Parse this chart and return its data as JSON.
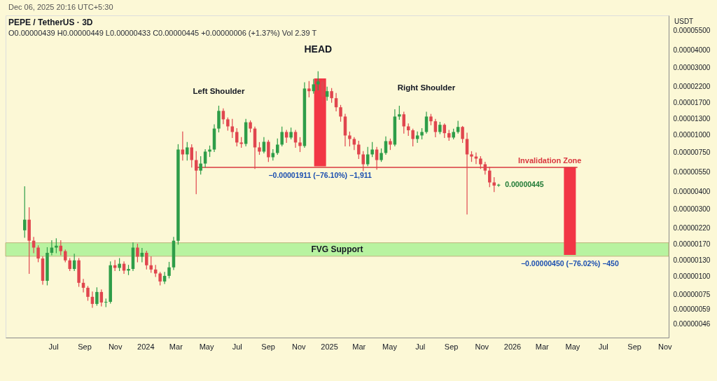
{
  "chart_data": {
    "type": "candlestick",
    "title": "PEPE / TetherUS · 3D",
    "subtitle": "O0.00000439 H0.00000449 L0.00000433 C0.00000445 +0.00000006 (+1.37%)  Vol 2.39 T",
    "ylabel": "USDT",
    "log": true,
    "xlim": [
      "2023-03-28",
      "2026-11-09"
    ],
    "ylim": [
      3.7e-07,
      7e-05
    ],
    "xticks": [
      {
        "value": "2023-07",
        "label": "Jul"
      },
      {
        "value": "2023-09",
        "label": "Sep"
      },
      {
        "value": "2023-11",
        "label": "Nov"
      },
      "2024",
      {
        "value": "2024-03",
        "label": "Mar"
      },
      {
        "value": "2024-05",
        "label": "May"
      },
      {
        "value": "2024-07",
        "label": "Jul"
      },
      {
        "value": "2024-09",
        "label": "Sep"
      },
      {
        "value": "2024-11",
        "label": "Nov"
      },
      "2025",
      {
        "value": "2025-03",
        "label": "Mar"
      },
      {
        "value": "2025-05",
        "label": "May"
      },
      {
        "value": "2025-07",
        "label": "Jul"
      },
      {
        "value": "2025-09",
        "label": "Sep"
      },
      {
        "value": "2025-11",
        "label": "Nov"
      },
      "2026",
      {
        "value": "2026-03",
        "label": "Mar"
      },
      {
        "value": "2026-05",
        "label": "May"
      },
      {
        "value": "2026-07",
        "label": "Jul"
      },
      {
        "value": "2026-09",
        "label": "Sep"
      },
      {
        "value": "2026-11",
        "label": "Nov"
      }
    ],
    "yticks": [
      {
        "value": 5.5e-05,
        "label": "0.00005500"
      },
      {
        "value": 4e-05,
        "label": "0.00004000"
      },
      {
        "value": 3e-05,
        "label": "0.00003000"
      },
      {
        "value": 2.2e-05,
        "label": "0.00002200"
      },
      {
        "value": 1.7e-05,
        "label": "0.00001700"
      },
      {
        "value": 1.3e-05,
        "label": "0.00001300"
      },
      {
        "value": 1e-05,
        "label": "0.00001000"
      },
      {
        "value": 7.5e-06,
        "label": "0.00000750"
      },
      {
        "value": 5.5e-06,
        "label": "0.00000550"
      },
      {
        "value": 4e-06,
        "label": "0.00000400"
      },
      {
        "value": 3e-06,
        "label": "0.00000300"
      },
      {
        "value": 2.2e-06,
        "label": "0.00000220"
      },
      {
        "value": 1.7e-06,
        "label": "0.00000170"
      },
      {
        "value": 1.3e-06,
        "label": "0.00000130"
      },
      {
        "value": 1e-06,
        "label": "0.00000100"
      },
      {
        "value": 7.5e-07,
        "label": "0.00000075"
      },
      {
        "value": 5.9e-07,
        "label": "0.00000059"
      },
      {
        "value": 4.6e-07,
        "label": "0.00000046"
      }
    ],
    "bands": [
      {
        "axis": "y",
        "from": 1.39e-06,
        "to": 1.73e-06,
        "label": "FVG Support",
        "color": "#b8f3a0"
      }
    ],
    "annotations": [
      "Dec 06, 2025 20:16 UTC+5:30",
      {
        "text": "Left Shoulder",
        "x": "2024-05-26",
        "y": 1.6e-05
      },
      {
        "text": "HEAD",
        "x": "2024-12-10",
        "y": 2.8e-05
      },
      {
        "text": "Right Shoulder",
        "x": "2025-07-14",
        "y": 1.45e-05
      },
      {
        "text": "Invalidation Zone",
        "x": "2026-03-17",
        "y": 5.9e-06
      },
      {
        "text": "0.00000445",
        "x": "2025-12-05",
        "y": 4.45e-06
      }
    ],
    "series": [
      {
        "x": [
          "2023-05-05",
          "2023-05-14",
          "2023-05-23",
          "2023-06-01",
          "2023-06-10",
          "2023-06-19",
          "2023-06-28",
          "2023-07-07",
          "2023-07-16",
          "2023-07-25",
          "2023-08-03",
          "2023-08-12",
          "2023-08-21",
          "2023-08-30",
          "2023-09-08",
          "2023-09-17",
          "2023-09-26",
          "2023-10-05",
          "2023-10-14",
          "2023-10-23",
          "2023-11-01",
          "2023-11-10",
          "2023-11-19",
          "2023-11-28",
          "2023-12-07",
          "2023-12-16",
          "2023-12-25",
          "2024-01-03",
          "2024-01-12",
          "2024-01-21",
          "2024-01-30",
          "2024-02-08",
          "2024-02-17",
          "2024-02-26",
          "2024-03-06",
          "2024-03-15",
          "2024-03-24",
          "2024-04-02",
          "2024-04-11",
          "2024-04-20",
          "2024-04-29",
          "2024-05-08",
          "2024-05-17",
          "2024-05-26",
          "2024-06-04",
          "2024-06-13",
          "2024-06-22",
          "2024-07-01",
          "2024-07-10",
          "2024-07-19",
          "2024-07-28",
          "2024-08-06",
          "2024-08-15",
          "2024-08-24",
          "2024-09-02",
          "2024-09-11",
          "2024-09-20",
          "2024-09-29",
          "2024-10-08",
          "2024-10-17",
          "2024-10-26",
          "2024-11-04",
          "2024-11-13",
          "2024-11-22",
          "2024-12-01",
          "2024-12-10",
          "2024-12-19",
          "2024-12-28",
          "2025-01-06",
          "2025-01-15",
          "2025-01-24",
          "2025-02-02",
          "2025-02-11",
          "2025-02-20",
          "2025-03-01",
          "2025-03-10",
          "2025-03-19",
          "2025-03-28",
          "2025-04-06",
          "2025-04-15",
          "2025-04-24",
          "2025-05-03",
          "2025-05-12",
          "2025-05-21",
          "2025-05-30",
          "2025-06-08",
          "2025-06-17",
          "2025-06-26",
          "2025-07-05",
          "2025-07-14",
          "2025-07-23",
          "2025-08-01",
          "2025-08-10",
          "2025-08-19",
          "2025-08-28",
          "2025-09-06",
          "2025-09-15",
          "2025-09-24",
          "2025-10-03",
          "2025-10-12",
          "2025-10-21",
          "2025-10-30",
          "2025-11-08",
          "2025-11-17",
          "2025-11-26",
          "2025-12-05"
        ],
        "ohlc": [
          [
            2.12e-06,
            4.31e-06,
            1.89e-06,
            2.52e-06
          ],
          [
            2.52e-06,
            3.06e-06,
            1.05e-06,
            1.79e-06
          ],
          [
            1.79e-06,
            1.89e-06,
            1.47e-06,
            1.6e-06
          ],
          [
            1.6e-06,
            1.65e-06,
            1.27e-06,
            1.34e-06
          ],
          [
            1.34e-06,
            1.38e-06,
            8.81e-07,
            9.32e-07
          ],
          [
            9.32e-07,
            1.6e-06,
            8.71e-07,
            1.47e-06
          ],
          [
            1.47e-06,
            1.79e-06,
            1.42e-06,
            1.6e-06
          ],
          [
            1.6e-06,
            1.85e-06,
            1.47e-06,
            1.65e-06
          ],
          [
            1.65e-06,
            1.79e-06,
            1.42e-06,
            1.51e-06
          ],
          [
            1.51e-06,
            1.54e-06,
            1.27e-06,
            1.3e-06
          ],
          [
            1.3e-06,
            1.34e-06,
            1.1e-06,
            1.13e-06
          ],
          [
            1.13e-06,
            1.44e-06,
            1.1e-06,
            1.3e-06
          ],
          [
            1.3e-06,
            1.34e-06,
            8.51e-07,
            9.02e-07
          ],
          [
            9.02e-07,
            9.54e-07,
            7.77e-07,
            8.32e-07
          ],
          [
            8.32e-07,
            8.51e-07,
            6.78e-07,
            7.18e-07
          ],
          [
            7.18e-07,
            7.77e-07,
            6.04e-07,
            6.4e-07
          ],
          [
            6.4e-07,
            8.32e-07,
            6.26e-07,
            7.77e-07
          ],
          [
            7.77e-07,
            8.04e-07,
            6.18e-07,
            6.55e-07
          ],
          [
            6.55e-07,
            6.93e-07,
            6.11e-07,
            6.62e-07
          ],
          [
            6.62e-07,
            1.27e-06,
            6.47e-07,
            1.2e-06
          ],
          [
            1.2e-06,
            1.3e-06,
            1.1e-06,
            1.15e-06
          ],
          [
            1.15e-06,
            1.34e-06,
            1.1e-06,
            1.23e-06
          ],
          [
            1.23e-06,
            1.27e-06,
            1.05e-06,
            1.1e-06
          ],
          [
            1.1e-06,
            1.2e-06,
            1.03e-06,
            1.13e-06
          ],
          [
            1.13e-06,
            1.73e-06,
            1.1e-06,
            1.6e-06
          ],
          [
            1.6e-06,
            1.69e-06,
            1.27e-06,
            1.38e-06
          ],
          [
            1.38e-06,
            1.58e-06,
            1.27e-06,
            1.47e-06
          ],
          [
            1.47e-06,
            1.51e-06,
            1.13e-06,
            1.2e-06
          ],
          [
            1.2e-06,
            1.38e-06,
            1.07e-06,
            1.12e-06
          ],
          [
            1.12e-06,
            1.2e-06,
            9.99e-07,
            1.05e-06
          ],
          [
            1.05e-06,
            1.07e-06,
            8.71e-07,
            9.22e-07
          ],
          [
            9.22e-07,
            1.07e-06,
            8.91e-07,
            1.01e-06
          ],
          [
            1.01e-06,
            1.26e-06,
            9.76e-07,
            1.16e-06
          ],
          [
            1.16e-06,
            1.89e-06,
            1.12e-06,
            1.79e-06
          ],
          [
            1.79e-06,
            8.55e-06,
            1.69e-06,
            7.89e-06
          ],
          [
            7.89e-06,
            1.05e-05,
            6.65e-06,
            7.29e-06
          ],
          [
            7.29e-06,
            8.85e-06,
            6.65e-06,
            8.17e-06
          ],
          [
            8.17e-06,
            8.55e-06,
            5.93e-06,
            6.65e-06
          ],
          [
            6.65e-06,
            7.63e-06,
            3.84e-06,
            5.6e-06
          ],
          [
            5.6e-06,
            7.04e-06,
            5.29e-06,
            6.28e-06
          ],
          [
            6.28e-06,
            7.89e-06,
            5.93e-06,
            7.63e-06
          ],
          [
            7.63e-06,
            8.36e-06,
            7.04e-06,
            7.89e-06
          ],
          [
            7.89e-06,
            1.18e-05,
            7.63e-06,
            1.11e-05
          ],
          [
            1.11e-05,
            1.6e-05,
            1.05e-05,
            1.48e-05
          ],
          [
            1.48e-05,
            1.53e-05,
            1.2e-05,
            1.29e-05
          ],
          [
            1.29e-05,
            1.32e-05,
            1.08e-05,
            1.15e-05
          ],
          [
            1.15e-05,
            1.29e-05,
            9.59e-06,
            1.05e-05
          ],
          [
            1.05e-05,
            1.11e-05,
            8.36e-06,
            8.85e-06
          ],
          [
            8.85e-06,
            9.59e-06,
            8.17e-06,
            8.65e-06
          ],
          [
            8.65e-06,
            1.29e-05,
            8.36e-06,
            1.23e-05
          ],
          [
            1.23e-05,
            1.26e-05,
            1.05e-05,
            1.11e-05
          ],
          [
            1.11e-05,
            1.14e-05,
            5.8e-06,
            8.17e-06
          ],
          [
            8.17e-06,
            8.85e-06,
            7.29e-06,
            7.63e-06
          ],
          [
            7.63e-06,
            9.59e-06,
            7.46e-06,
            8.95e-06
          ],
          [
            8.95e-06,
            9.16e-06,
            6.5e-06,
            6.96e-06
          ],
          [
            6.96e-06,
            7.89e-06,
            6.65e-06,
            7.46e-06
          ],
          [
            7.46e-06,
            9.37e-06,
            7.29e-06,
            8.55e-06
          ],
          [
            8.55e-06,
            1.14e-05,
            8.36e-06,
            1.05e-05
          ],
          [
            1.05e-05,
            1.08e-05,
            8.85e-06,
            9.59e-06
          ],
          [
            9.59e-06,
            1.12e-05,
            9.37e-06,
            1.05e-05
          ],
          [
            1.05e-05,
            1.08e-05,
            8.17e-06,
            8.85e-06
          ],
          [
            8.85e-06,
            9.59e-06,
            7.63e-06,
            8.36e-06
          ],
          [
            8.36e-06,
            2.34e-05,
            8.17e-06,
            2.13e-05
          ],
          [
            2.13e-05,
            2.39e-05,
            1.86e-05,
            2.04e-05
          ],
          [
            2.04e-05,
            2.47e-05,
            1.97e-05,
            2.28e-05
          ],
          [
            2.28e-05,
            2.8e-05,
            2.08e-05,
            2.39e-05
          ],
          [
            2.39e-05,
            2.47e-05,
            1.66e-05,
            1.86e-05
          ],
          [
            1.86e-05,
            2.18e-05,
            1.76e-05,
            2.04e-05
          ],
          [
            2.04e-05,
            2.13e-05,
            1.7e-05,
            1.82e-05
          ],
          [
            1.82e-05,
            1.97e-05,
            1.48e-05,
            1.57e-05
          ],
          [
            1.57e-05,
            1.62e-05,
            1.25e-05,
            1.35e-05
          ],
          [
            1.35e-05,
            1.4e-05,
            8.36e-06,
            9.92e-06
          ],
          [
            9.92e-06,
            1.05e-05,
            8.36e-06,
            9.37e-06
          ],
          [
            9.37e-06,
            9.59e-06,
            7.89e-06,
            8.55e-06
          ],
          [
            8.55e-06,
            9.05e-06,
            6.81e-06,
            7.29e-06
          ],
          [
            7.29e-06,
            7.63e-06,
            5.6e-06,
            6.21e-06
          ],
          [
            6.21e-06,
            8.17e-06,
            6.07e-06,
            7.29e-06
          ],
          [
            7.29e-06,
            8.85e-06,
            7.04e-06,
            7.89e-06
          ],
          [
            7.89e-06,
            8.17e-06,
            5.73e-06,
            6.65e-06
          ],
          [
            6.65e-06,
            7.98e-06,
            6.5e-06,
            7.46e-06
          ],
          [
            7.46e-06,
            9.7e-06,
            7.29e-06,
            9.05e-06
          ],
          [
            9.05e-06,
            9.37e-06,
            7.89e-06,
            8.55e-06
          ],
          [
            8.55e-06,
            1.51e-05,
            8.36e-06,
            1.35e-05
          ],
          [
            1.35e-05,
            1.6e-05,
            1.29e-05,
            1.4e-05
          ],
          [
            1.4e-05,
            1.45e-05,
            1.03e-05,
            1.15e-05
          ],
          [
            1.15e-05,
            1.2e-05,
            9.92e-06,
            1.08e-05
          ],
          [
            1.08e-05,
            1.1e-05,
            8.36e-06,
            9.37e-06
          ],
          [
            9.37e-06,
            1.05e-05,
            8.85e-06,
            9.92e-06
          ],
          [
            9.92e-06,
            1.11e-05,
            9.37e-06,
            1.05e-05
          ],
          [
            1.05e-05,
            1.45e-05,
            1.03e-05,
            1.35e-05
          ],
          [
            1.35e-05,
            1.4e-05,
            1.18e-05,
            1.25e-05
          ],
          [
            1.25e-05,
            1.29e-05,
            9.7e-06,
            1.05e-05
          ],
          [
            1.05e-05,
            1.23e-05,
            1.02e-05,
            1.18e-05
          ],
          [
            1.18e-05,
            1.2e-05,
            9.59e-06,
            1.03e-05
          ],
          [
            1.03e-05,
            1.08e-05,
            9.16e-06,
            9.59e-06
          ],
          [
            9.59e-06,
            1.1e-05,
            9.37e-06,
            1.05e-05
          ],
          [
            1.05e-05,
            1.25e-05,
            1.03e-05,
            1.14e-05
          ],
          [
            1.14e-05,
            1.15e-05,
            8.85e-06,
            9.37e-06
          ],
          [
            9.37e-06,
            1.03e-05,
            2.76e-06,
            7.29e-06
          ],
          [
            7.29e-06,
            7.63e-06,
            6.5e-06,
            7.04e-06
          ],
          [
            7.04e-06,
            7.46e-06,
            6.28e-06,
            6.81e-06
          ],
          [
            6.81e-06,
            7.04e-06,
            5.8e-06,
            6.21e-06
          ],
          [
            6.21e-06,
            6.43e-06,
            5.29e-06,
            5.6e-06
          ],
          [
            5.6e-06,
            5.93e-06,
            4.31e-06,
            4.62e-06
          ],
          [
            4.62e-06,
            5e-06,
            3.98e-06,
            4.39e-06
          ],
          [
            4.39e-06,
            4.49e-06,
            4.33e-06,
            4.45e-06
          ]
        ],
        "colors": [
          "#2e9d48",
          "#e0464e",
          "#e0464e",
          "#e0464e",
          "#e0464e",
          "#2e9d48",
          "#2e9d48",
          "#2e9d48",
          "#e0464e",
          "#e0464e",
          "#e0464e",
          "#2e9d48",
          "#e0464e",
          "#e0464e",
          "#e0464e",
          "#e0464e",
          "#2e9d48",
          "#e0464e",
          "#2e9d48",
          "#2e9d48",
          "#e0464e",
          "#2e9d48",
          "#e0464e",
          "#2e9d48",
          "#2e9d48",
          "#e0464e",
          "#2e9d48",
          "#e0464e",
          "#e0464e",
          "#e0464e",
          "#e0464e",
          "#2e9d48",
          "#2e9d48",
          "#2e9d48",
          "#2e9d48",
          "#e0464e",
          "#2e9d48",
          "#e0464e",
          "#e0464e",
          "#2e9d48",
          "#2e9d48",
          "#2e9d48",
          "#2e9d48",
          "#2e9d48",
          "#e0464e",
          "#e0464e",
          "#e0464e",
          "#e0464e",
          "#e0464e",
          "#2e9d48",
          "#e0464e",
          "#e0464e",
          "#e0464e",
          "#2e9d48",
          "#e0464e",
          "#2e9d48",
          "#2e9d48",
          "#2e9d48",
          "#e0464e",
          "#2e9d48",
          "#e0464e",
          "#e0464e",
          "#2e9d48",
          "#e0464e",
          "#2e9d48",
          "#2e9d48",
          "#e0464e",
          "#2e9d48",
          "#e0464e",
          "#e0464e",
          "#e0464e",
          "#e0464e",
          "#e0464e",
          "#e0464e",
          "#e0464e",
          "#e0464e",
          "#2e9d48",
          "#2e9d48",
          "#e0464e",
          "#2e9d48",
          "#2e9d48",
          "#e0464e",
          "#2e9d48",
          "#2e9d48",
          "#e0464e",
          "#e0464e",
          "#e0464e",
          "#2e9d48",
          "#2e9d48",
          "#2e9d48",
          "#e0464e",
          "#e0464e",
          "#2e9d48",
          "#e0464e",
          "#e0464e",
          "#2e9d48",
          "#2e9d48",
          "#e0464e",
          "#e0464e",
          "#e0464e",
          "#e0464e",
          "#e0464e",
          "#e0464e",
          "#e0464e",
          "#e0464e",
          "#2e9d48"
        ]
      },
      {
        "type": "line",
        "x": [
          "2024-04-13",
          "2026-05-10"
        ],
        "values": [
          5.9e-06,
          5.9e-06
        ],
        "color": "#d93a3f"
      },
      {
        "type": "bar",
        "x": [
          "2024-12-14",
          "2026-04-26"
        ],
        "base": [
          2.511e-05,
          5.92e-06
        ],
        "values": [
          -1.911e-05,
          -4.5e-06
        ],
        "color": "#f23645",
        "value_labels": [
          "−0.00001911 (−76.10%) −1,911",
          "−0.00000450 (−76.02%) −450"
        ]
      }
    ]
  }
}
